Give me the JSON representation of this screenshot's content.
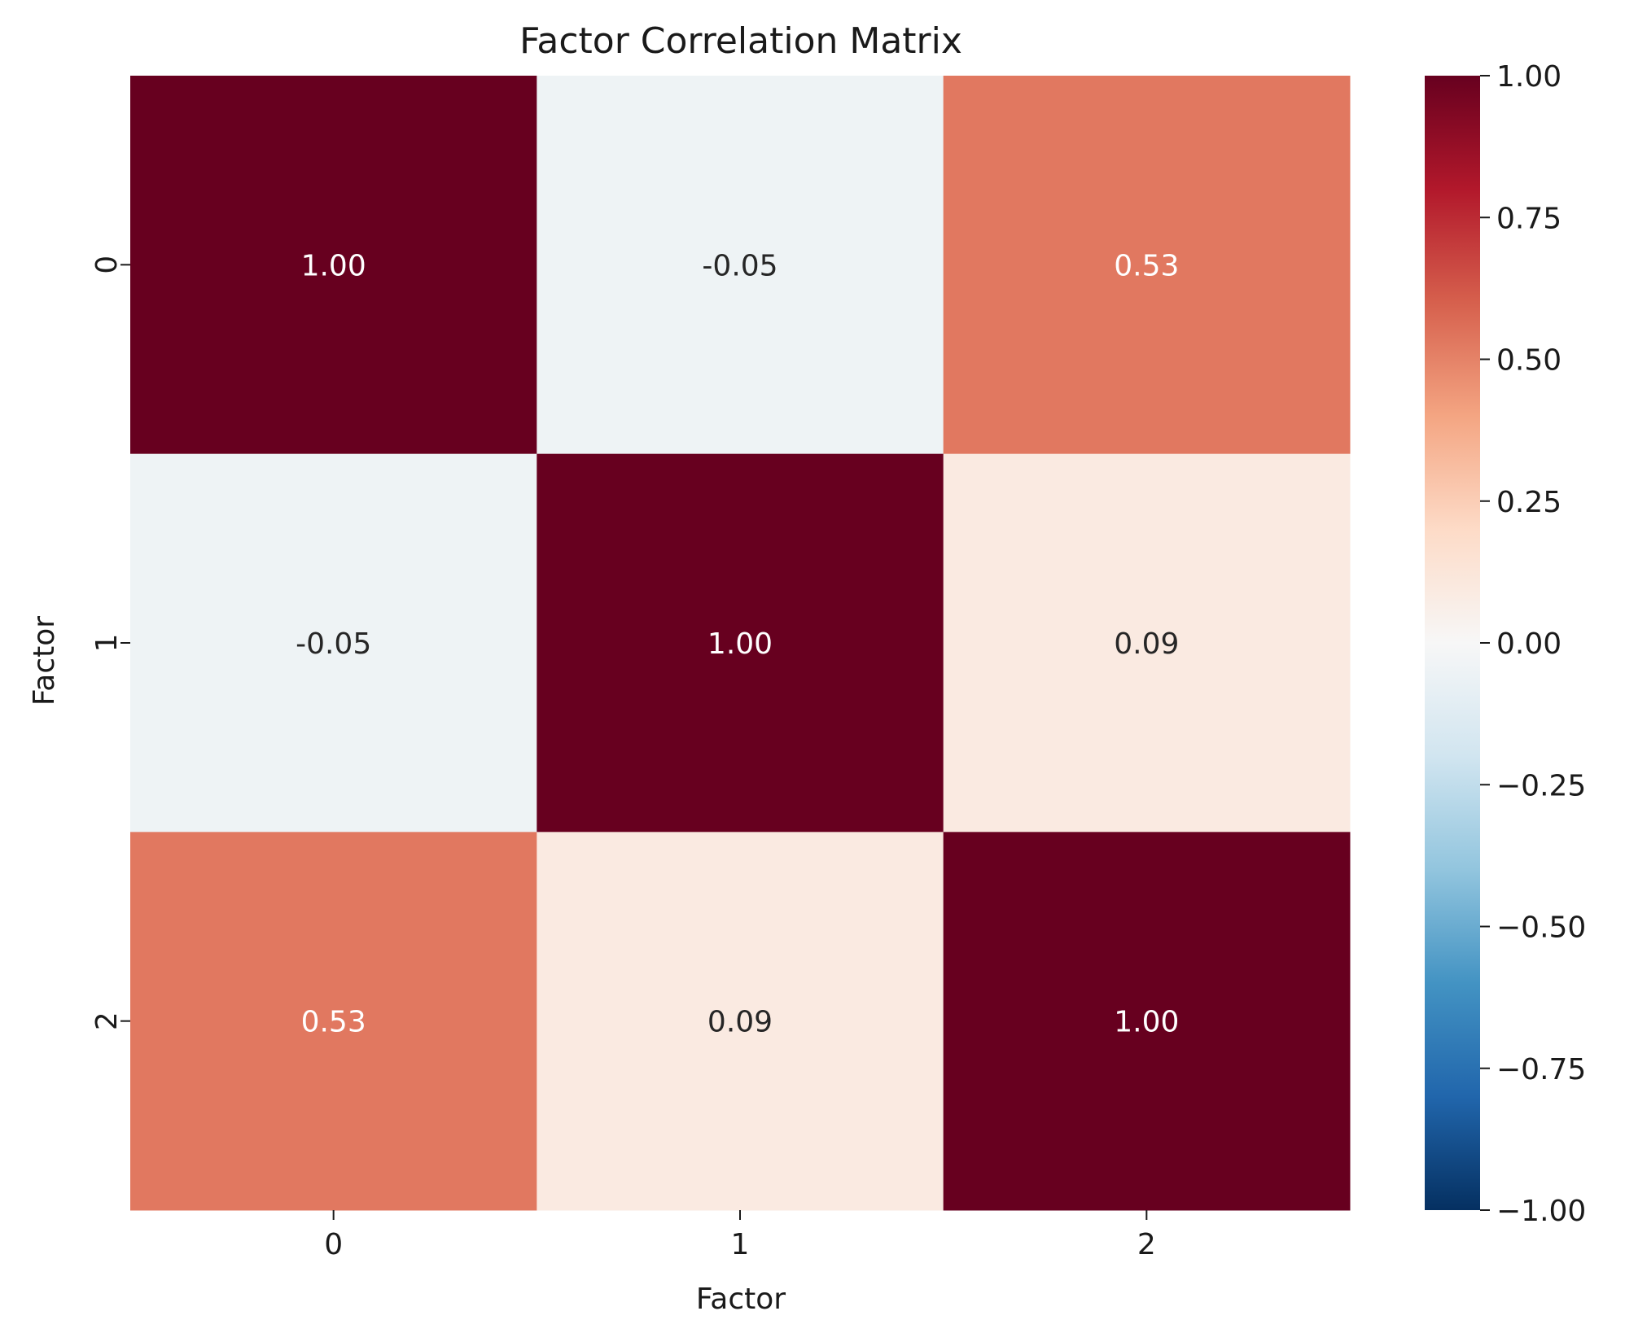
{
  "chart_data": {
    "type": "heatmap",
    "title": "Factor Correlation Matrix",
    "xlabel": "Factor",
    "ylabel": "Factor",
    "x_categories": [
      "0",
      "1",
      "2"
    ],
    "y_categories": [
      "0",
      "1",
      "2"
    ],
    "values": [
      [
        1.0,
        -0.05,
        0.53
      ],
      [
        -0.05,
        1.0,
        0.09
      ],
      [
        0.53,
        0.09,
        1.0
      ]
    ],
    "annotations": [
      [
        "1.00",
        "-0.05",
        "0.53"
      ],
      [
        "-0.05",
        "1.00",
        "0.09"
      ],
      [
        "0.53",
        "0.09",
        "1.00"
      ]
    ],
    "colormap": "RdBu_r",
    "vmin": -1.0,
    "vmax": 1.0,
    "colorbar_ticks": [
      1.0,
      0.75,
      0.5,
      0.25,
      0.0,
      -0.25,
      -0.5,
      -0.75,
      -1.0
    ],
    "colorbar_tick_labels": [
      "1.00",
      "0.75",
      "0.50",
      "0.25",
      "0.00",
      "−0.25",
      "−0.50",
      "−0.75",
      "−1.00"
    ]
  }
}
